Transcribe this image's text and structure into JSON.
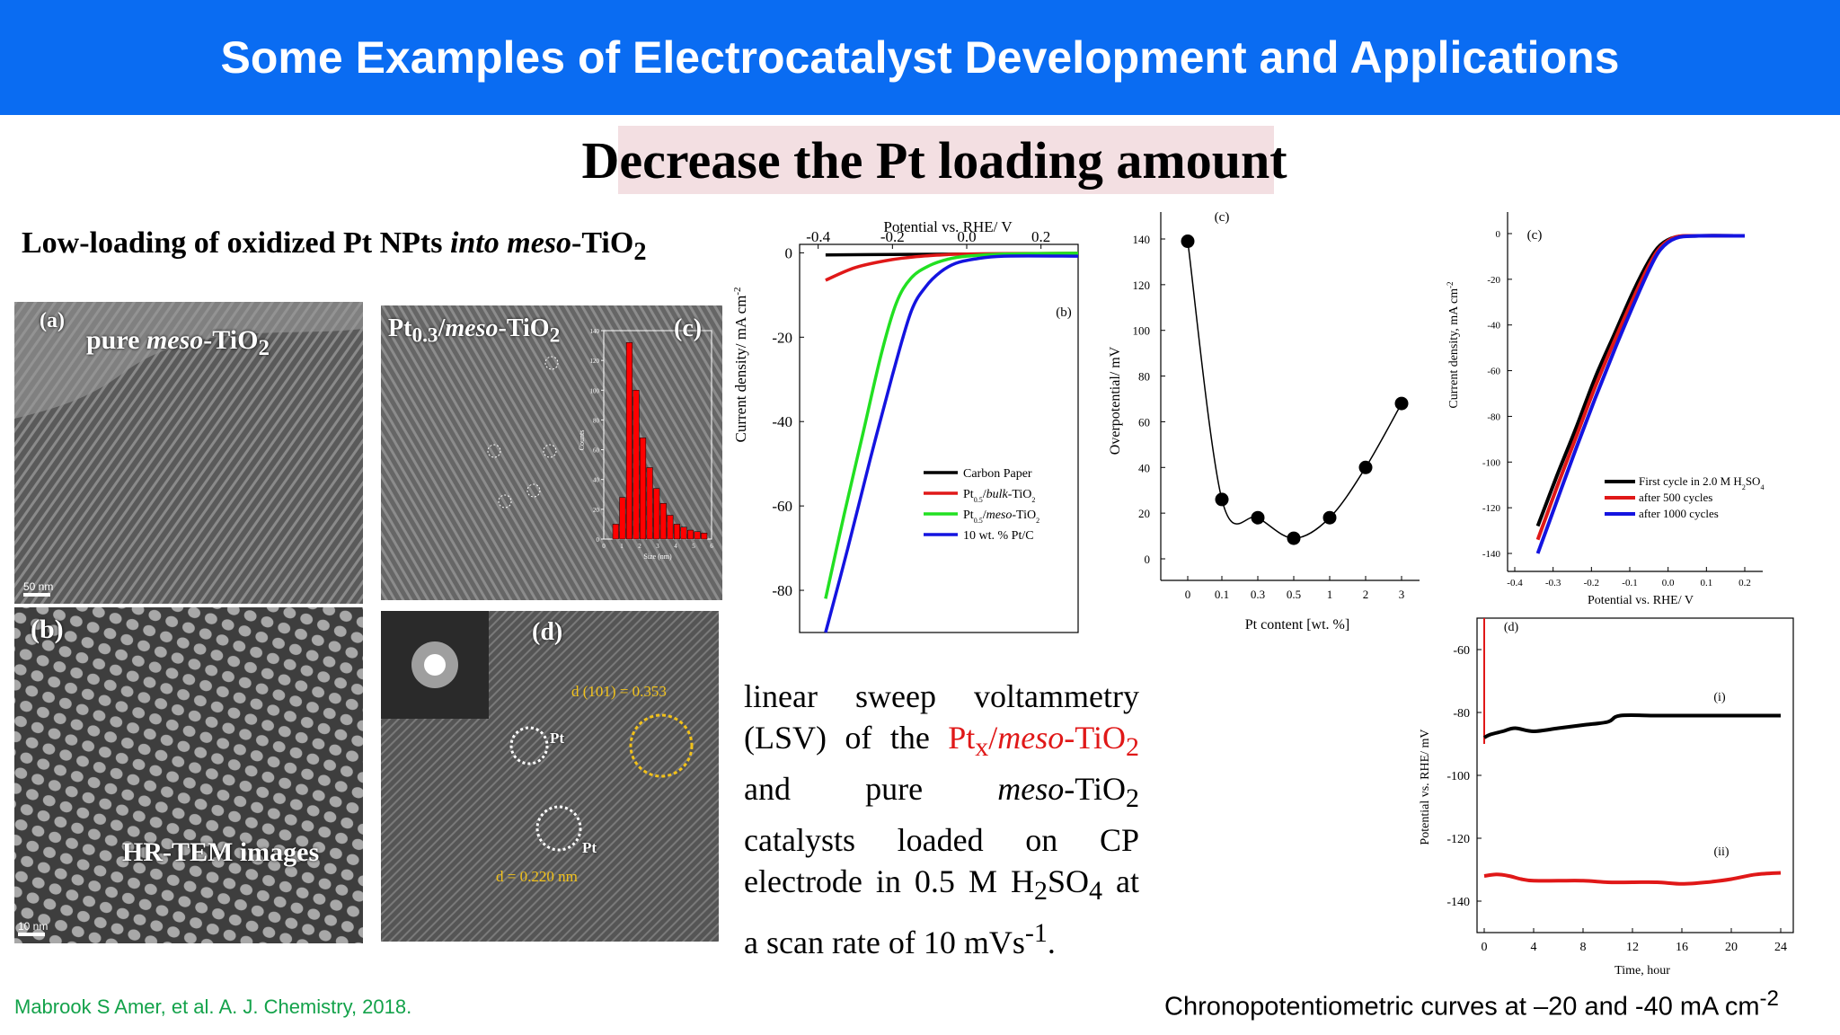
{
  "slide": {
    "title": "Some Examples of Electrocatalyst Development and Applications",
    "subtitle": "Decrease the Pt loading amount",
    "left_caption_prefix": "Low-loading of oxidized Pt NPts ",
    "left_caption_italic": "into meso",
    "left_caption_suffix": "-TiO",
    "left_caption_sub": "2",
    "citation": "Mabrook S Amer, et al. A. J. Chemistry, 2018.",
    "chrono_caption": "Chronopotentiometric curves at –20 and -40 mA cm",
    "chrono_caption_sup": "-2"
  },
  "micrographs": {
    "a": {
      "label": "(a)",
      "title_prefix": "pure ",
      "title_italic": "meso",
      "title_suffix": "-TiO",
      "title_sub": "2",
      "scale": "50 nm"
    },
    "b": {
      "label": "(b)",
      "title": "HR-TEM images",
      "scale": "10 nm"
    },
    "c": {
      "label": "(c)",
      "title_prefix": "Pt",
      "title_sub1": "0.3",
      "title_mid": "/",
      "title_italic": "meso",
      "title_suffix": "-TiO",
      "title_sub2": "2",
      "hist_ylabel": "Counts",
      "hist_xlabel": "Size (nm)",
      "hist_yticks": [
        "0",
        "20",
        "40",
        "60",
        "80",
        "100",
        "120",
        "140"
      ],
      "hist_xticks": [
        "0",
        "1",
        "2",
        "3",
        "4",
        "5",
        "6"
      ],
      "hist_values": [
        10,
        28,
        132,
        100,
        68,
        48,
        34,
        24,
        16,
        10,
        8,
        6,
        5,
        4
      ]
    },
    "d": {
      "label": "(d)",
      "d101": "d (101) = 0.353",
      "d_nm": "d = 0.220 nm",
      "pt1": "Pt",
      "pt2": "Pt"
    }
  },
  "paragraph": {
    "line1": "linear sweep voltammetry",
    "p2_a": "(LSV) of the ",
    "p2_pt": "Pt",
    "p2_x": "x",
    "p2_slash": "/",
    "p2_meso": "meso",
    "p2_tio": "-TiO",
    "p2_2": "2",
    "p3_and": "and",
    "p3_pure": "pure",
    "p3_meso": "meso",
    "p3_tio": "-TiO",
    "p3_2": "2",
    "line4": "catalysts loaded on CP",
    "p5_a": "electrode in 0.5 M H",
    "p5_2": "2",
    "p5_so": "SO",
    "p5_4": "4",
    "p5_b": " at",
    "p6_a": "a scan rate of 10 mVs",
    "p6_sup": "-1",
    "p6_b": "."
  },
  "chart_data": [
    {
      "id": "lsv",
      "type": "line",
      "panel_label": "(b)",
      "xlabel": "Potential vs. RHE/ V",
      "ylabel": "Current density/ mA cm",
      "ylabel_sup": "-2",
      "xlim": [
        -0.45,
        0.3
      ],
      "ylim": [
        -90,
        2
      ],
      "xticks": [
        "-0.4",
        "-0.2",
        "0.0",
        "0.2"
      ],
      "yticks": [
        "0",
        "-20",
        "-40",
        "-60",
        "-80"
      ],
      "legend_position": "bottom-right",
      "legend": [
        "Carbon Paper",
        "Pt0.5/bulk-TiO2",
        "Pt0.5/meso-TiO2",
        "10 wt. %  Pt/C"
      ],
      "series": [
        {
          "name": "Carbon Paper",
          "color": "#000000",
          "x": [
            -0.38,
            -0.2,
            0.0,
            0.3
          ],
          "y": [
            -0.5,
            -0.4,
            -0.3,
            -0.2
          ]
        },
        {
          "name": "Pt0.5/bulk-TiO2",
          "color": "#e01818",
          "x": [
            -0.38,
            -0.3,
            -0.2,
            -0.12,
            -0.05,
            0.0,
            0.1,
            0.3
          ],
          "y": [
            -6.5,
            -3.5,
            -1.6,
            -0.8,
            -0.4,
            -0.3,
            -0.2,
            -0.1
          ]
        },
        {
          "name": "Pt0.5/meso-TiO2",
          "color": "#22e022",
          "x": [
            -0.38,
            -0.33,
            -0.28,
            -0.23,
            -0.19,
            -0.15,
            -0.1,
            -0.05,
            0.0,
            0.1,
            0.3
          ],
          "y": [
            -82,
            -62,
            -43,
            -24,
            -12,
            -6,
            -3,
            -1.5,
            -0.8,
            -0.3,
            -0.1
          ]
        },
        {
          "name": "10 wt. %  Pt/C",
          "color": "#1414e0",
          "x": [
            -0.38,
            -0.32,
            -0.26,
            -0.2,
            -0.15,
            -0.11,
            -0.07,
            -0.03,
            0.02,
            0.1,
            0.3
          ],
          "y": [
            -90,
            -70,
            -49,
            -29,
            -14,
            -8,
            -4.5,
            -2.5,
            -1.5,
            -0.8,
            -0.8
          ]
        }
      ]
    },
    {
      "id": "overpotential",
      "type": "scatter",
      "panel_label": "(c)",
      "xlabel": "Pt content [wt. %]",
      "ylabel": "Overpotential/ mV",
      "categories": [
        "0",
        "0.1",
        "0.3",
        "0.5",
        "1",
        "2",
        "3"
      ],
      "values": [
        139,
        26,
        18,
        9,
        18,
        40,
        68
      ],
      "ylim": [
        0,
        140
      ],
      "yticks": [
        "0",
        "20",
        "40",
        "60",
        "80",
        "100",
        "120",
        "140"
      ]
    },
    {
      "id": "stability",
      "type": "line",
      "panel_label": "(c)",
      "xlabel": "Potential vs. RHE/ V",
      "ylabel": "Current density, mA cm",
      "ylabel_sup": "-2",
      "xlim": [
        -0.4,
        0.2
      ],
      "ylim": [
        -140,
        0
      ],
      "xticks": [
        "-0.4",
        "-0.3",
        "-0.2",
        "-0.1",
        "0.0",
        "0.1",
        "0.2"
      ],
      "yticks": [
        "0",
        "-20",
        "-40",
        "-60",
        "-80",
        "-100",
        "-120",
        "-140"
      ],
      "legend_position": "bottom-right",
      "legend": [
        "First cycle in 2.0 M H2SO4",
        "after 500 cycles",
        "after 1000 cycles"
      ],
      "series": [
        {
          "name": "First cycle in 2.0 M H2SO4",
          "color": "#000000",
          "x": [
            -0.34,
            -0.29,
            -0.24,
            -0.19,
            -0.14,
            -0.09,
            -0.05,
            -0.02,
            0.02,
            0.08,
            0.2
          ],
          "y": [
            -128,
            -106,
            -85,
            -63,
            -44,
            -25,
            -12,
            -5,
            -1.5,
            -1,
            -1
          ]
        },
        {
          "name": "after 500 cycles",
          "color": "#e01818",
          "x": [
            -0.34,
            -0.29,
            -0.24,
            -0.19,
            -0.14,
            -0.09,
            -0.05,
            -0.02,
            0.02,
            0.08,
            0.2
          ],
          "y": [
            -134,
            -111,
            -89,
            -67,
            -47,
            -28,
            -14,
            -6,
            -1.5,
            -1,
            -1
          ]
        },
        {
          "name": "after 1000 cycles",
          "color": "#1414e0",
          "x": [
            -0.34,
            -0.29,
            -0.24,
            -0.19,
            -0.14,
            -0.09,
            -0.05,
            -0.02,
            0.02,
            0.08,
            0.2
          ],
          "y": [
            -140,
            -117,
            -94,
            -72,
            -51,
            -31,
            -16,
            -7,
            -2,
            -1,
            -1
          ]
        }
      ]
    },
    {
      "id": "chrono",
      "type": "line",
      "panel_label": "(d)",
      "xlabel": "Time, hour",
      "ylabel": "Potential  vs. RHE/ mV",
      "xlim": [
        0,
        24
      ],
      "ylim": [
        -150,
        -50
      ],
      "xticks": [
        "0",
        "4",
        "8",
        "12",
        "16",
        "20",
        "24"
      ],
      "yticks": [
        "-60",
        "-80",
        "-100",
        "-120",
        "-140"
      ],
      "annotations": [
        "(i)",
        "(ii)"
      ],
      "series": [
        {
          "name": "(i)",
          "color": "#000000",
          "x": [
            0,
            0.5,
            1.5,
            2.5,
            4,
            6,
            8,
            10,
            11,
            14,
            18,
            22,
            24
          ],
          "y": [
            -88,
            -87,
            -86,
            -85,
            -86,
            -85,
            -84,
            -83,
            -81,
            -81,
            -81,
            -81,
            -81
          ]
        },
        {
          "name": "(ii)",
          "color": "#e01818",
          "x": [
            0,
            1,
            2,
            3,
            4,
            6,
            8,
            10,
            12,
            14,
            16,
            18,
            20,
            22,
            24
          ],
          "y": [
            -132,
            -131.5,
            -132,
            -133,
            -133.5,
            -133.5,
            -133.5,
            -134,
            -134,
            -134,
            -134.5,
            -134,
            -133,
            -131.5,
            -131
          ]
        }
      ]
    }
  ]
}
